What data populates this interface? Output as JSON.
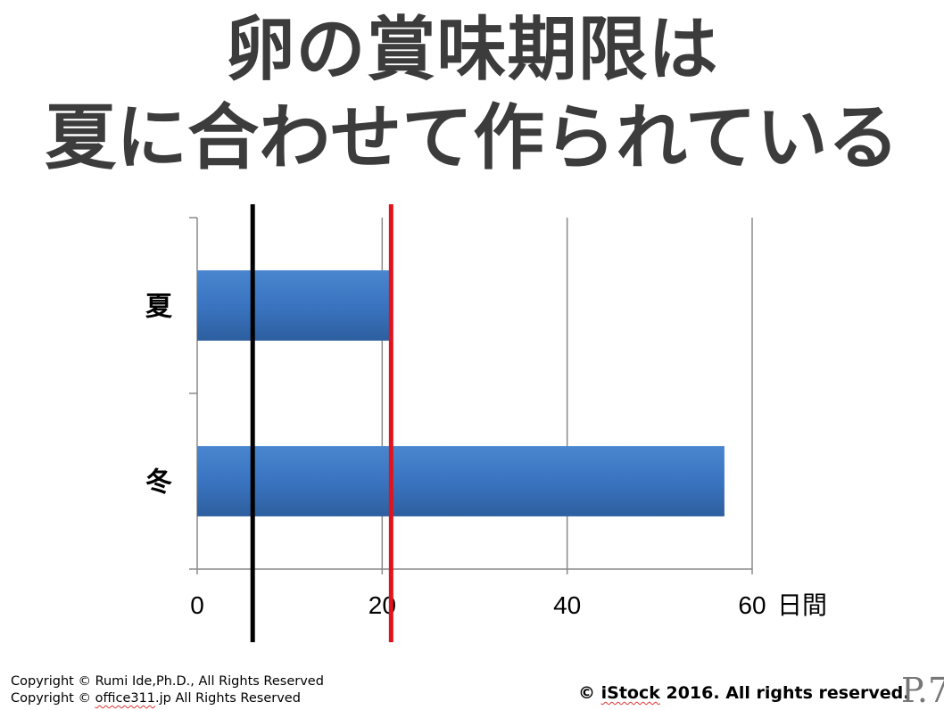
{
  "title": {
    "line1": "卵の賞味期限は",
    "line2": "夏に合わせて作られている"
  },
  "chart_data": {
    "type": "bar",
    "orientation": "horizontal",
    "categories": [
      "夏",
      "冬"
    ],
    "values": [
      21,
      57
    ],
    "xlim": [
      0,
      60
    ],
    "xticks": [
      "0",
      "20",
      "40",
      "60"
    ],
    "xunit": "日間",
    "gridlines": "vertical",
    "reference_lines": [
      {
        "x": 6,
        "color": "#000000"
      },
      {
        "x": 20,
        "color": "#e0141e"
      }
    ],
    "bar_color": "#3a74c0"
  },
  "footer": {
    "copyright1": "Copyright © Rumi Ide,Ph.D.,  All Rights Reserved",
    "copyright2_a": "Copyright © ",
    "copyright2_b": "office311",
    "copyright2_c": ".jp All Rights Reserved",
    "istock_a": "© ",
    "istock_b": "iStock",
    "istock_c": " 2016. All rights reserved.",
    "page": "P.7"
  }
}
